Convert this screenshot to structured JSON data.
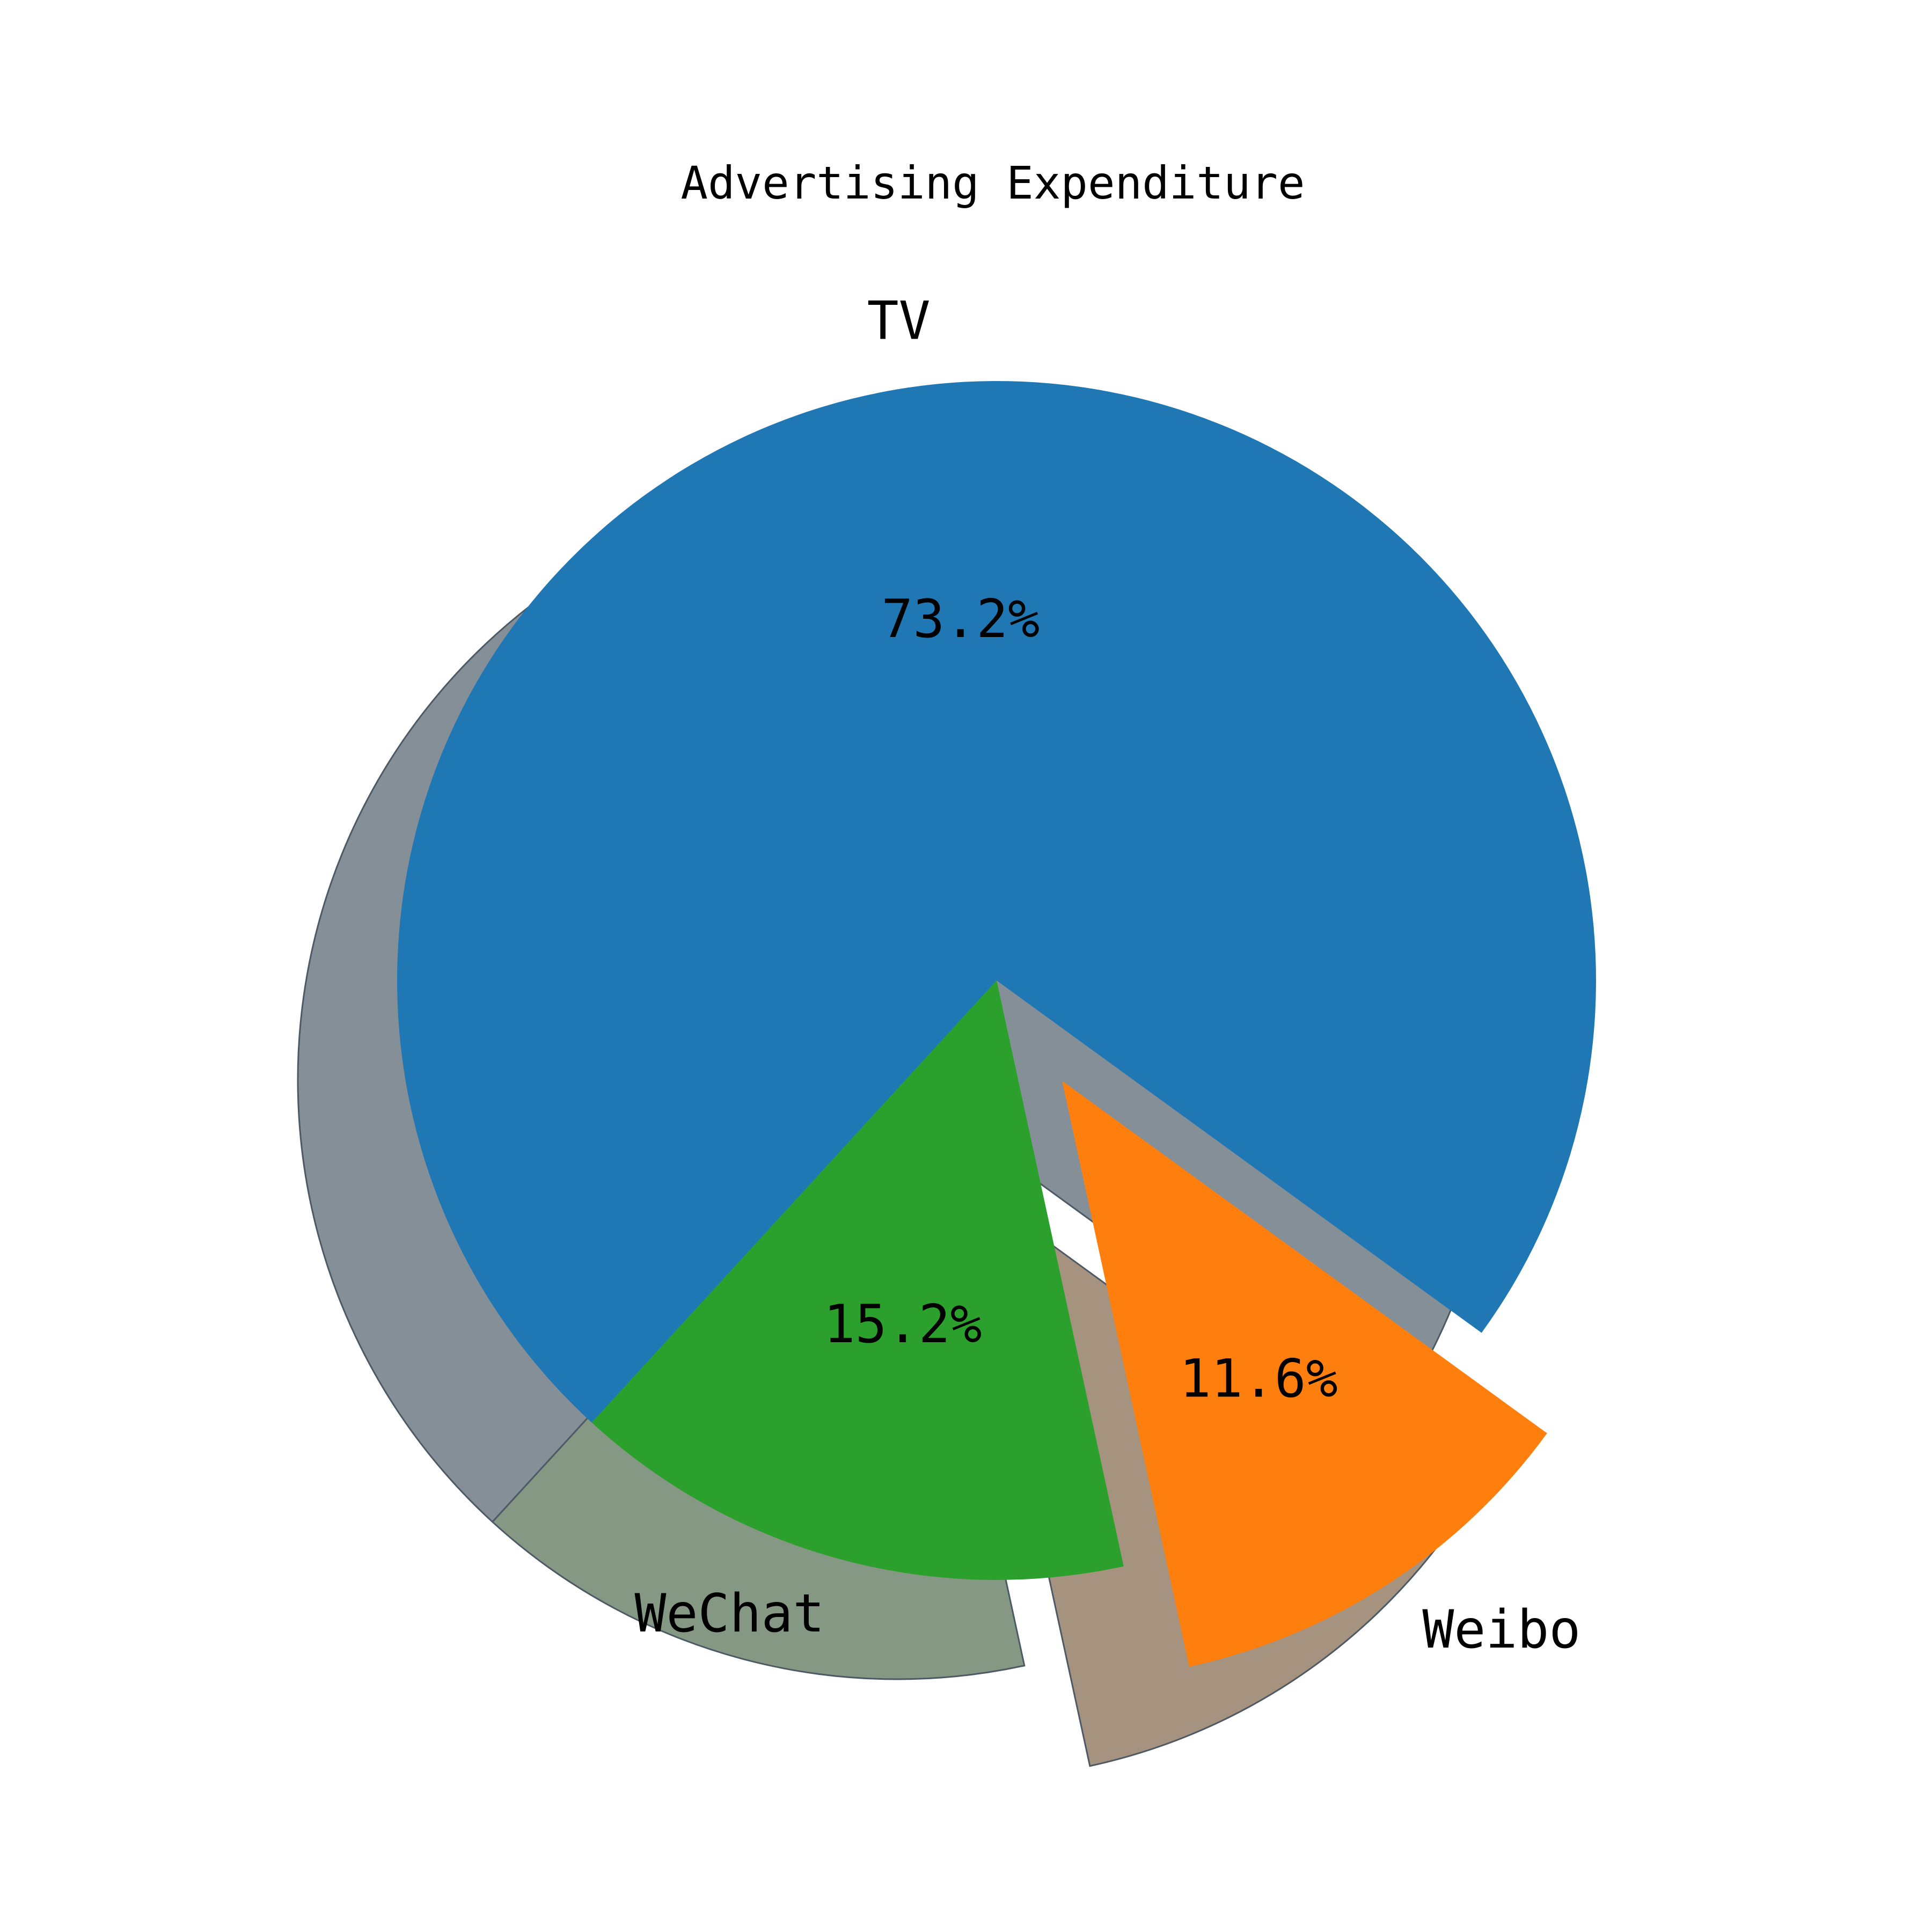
{
  "chart_data": {
    "type": "pie",
    "title": "Advertising Expenditure",
    "categories": [
      "TV",
      "WeChat",
      "Weibo"
    ],
    "values": [
      73.2,
      15.2,
      11.6
    ],
    "percent_labels": [
      "73.2%",
      "15.2%",
      "11.6%"
    ],
    "exploded": [
      false,
      false,
      true
    ],
    "shadow": true,
    "colors": [
      "#1f77b4",
      "#2ca02c",
      "#ff7f0e"
    ],
    "shadow_colors": [
      "#848f98",
      "#849884",
      "#a5927f"
    ],
    "legend": "none"
  }
}
